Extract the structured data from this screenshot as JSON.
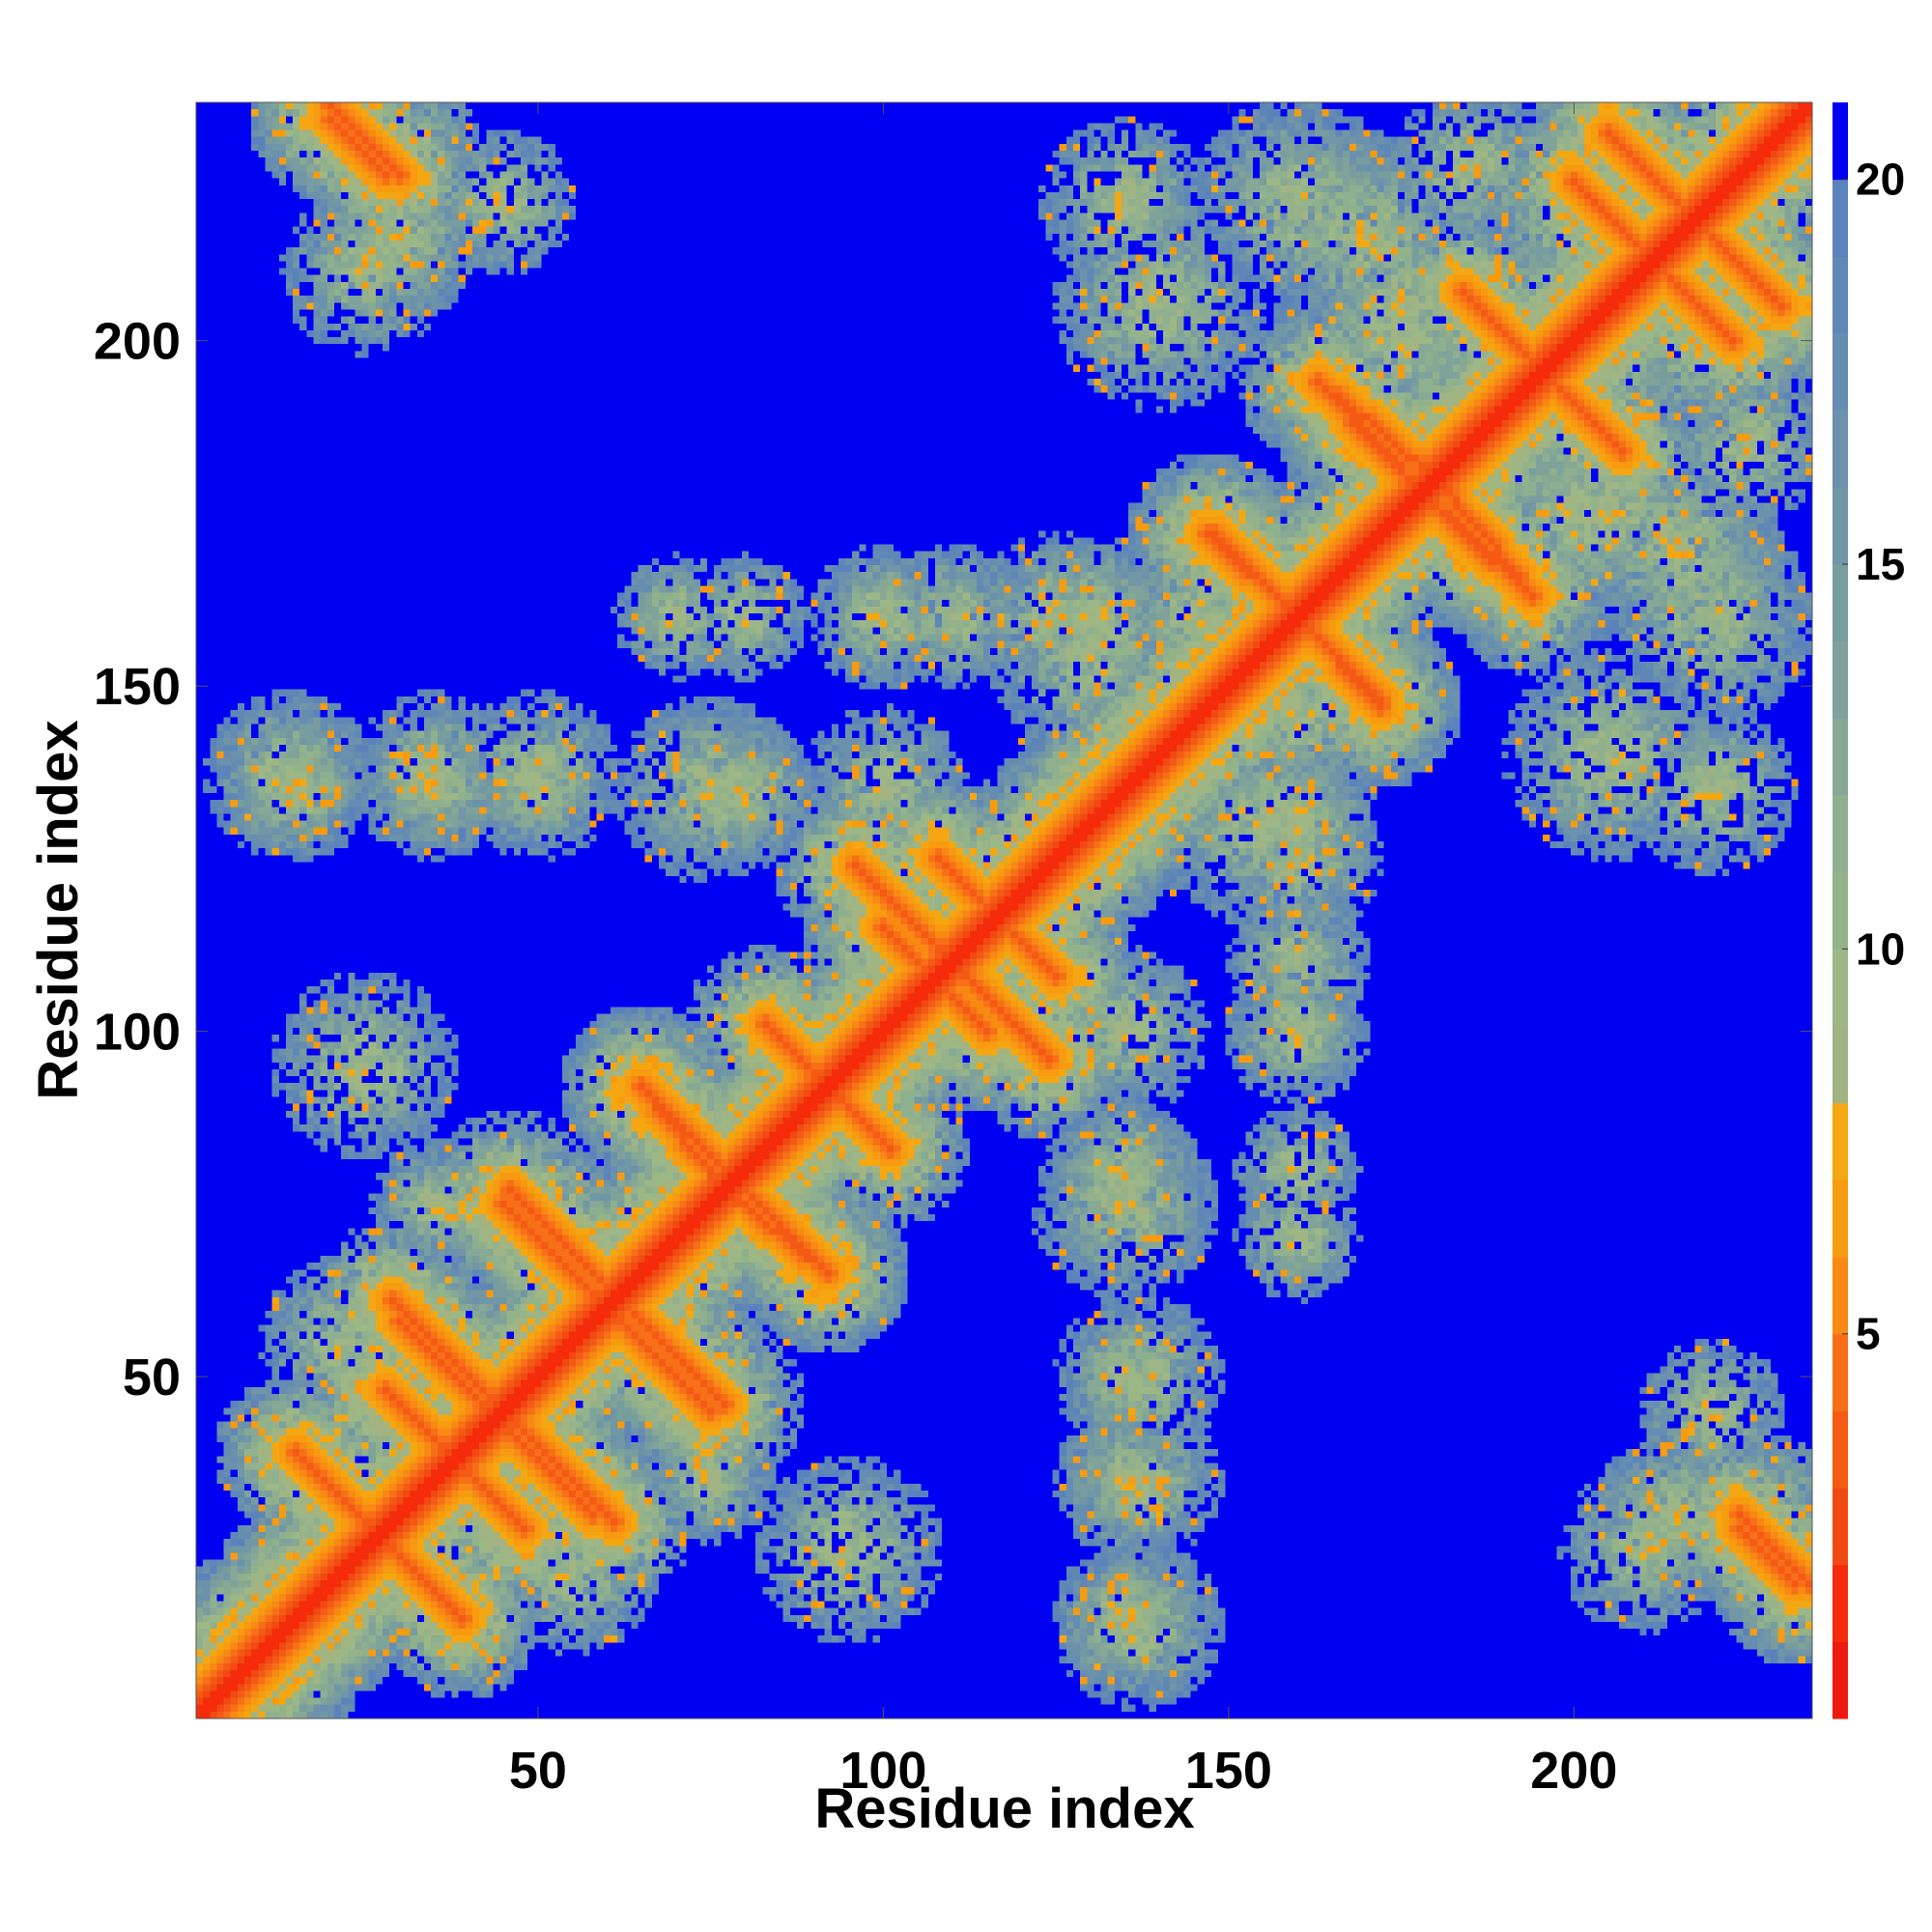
{
  "chart_data": {
    "type": "heatmap",
    "title": "",
    "xlabel": "Residue index",
    "ylabel": "Residue index",
    "n_residues": 234,
    "xlim": [
      1,
      234
    ],
    "ylim": [
      1,
      234
    ],
    "xticks": [
      50,
      100,
      150,
      200
    ],
    "yticks": [
      50,
      100,
      150,
      200
    ],
    "colorbar": {
      "range": [
        0,
        21
      ],
      "ticks": [
        5,
        10,
        15,
        20
      ],
      "levels": [
        {
          "from": 0,
          "to": 1,
          "color": "#ee1a10"
        },
        {
          "from": 1,
          "to": 2,
          "color": "#f52b0c"
        },
        {
          "from": 2,
          "to": 3,
          "color": "#f04a12"
        },
        {
          "from": 3,
          "to": 4,
          "color": "#f55a15"
        },
        {
          "from": 4,
          "to": 5,
          "color": "#f77018"
        },
        {
          "from": 5,
          "to": 6,
          "color": "#f88a14"
        },
        {
          "from": 6,
          "to": 7,
          "color": "#f79b10"
        },
        {
          "from": 7,
          "to": 8,
          "color": "#f5a712"
        },
        {
          "from": 8,
          "to": 9,
          "color": "#a2b482"
        },
        {
          "from": 9,
          "to": 10,
          "color": "#9db787"
        },
        {
          "from": 10,
          "to": 11,
          "color": "#95b38a"
        },
        {
          "from": 11,
          "to": 12,
          "color": "#8fb08f"
        },
        {
          "from": 12,
          "to": 13,
          "color": "#86a894"
        },
        {
          "from": 13,
          "to": 14,
          "color": "#7fa39a"
        },
        {
          "from": 14,
          "to": 15,
          "color": "#789d9f"
        },
        {
          "from": 15,
          "to": 16,
          "color": "#7196a5"
        },
        {
          "from": 16,
          "to": 17,
          "color": "#6b91ac"
        },
        {
          "from": 17,
          "to": 18,
          "color": "#658cb1"
        },
        {
          "from": 18,
          "to": 19,
          "color": "#5f87b6"
        },
        {
          "from": 19,
          "to": 20,
          "color": "#5a82bb"
        },
        {
          "from": 20,
          "to": 21,
          "color": "#0000f2"
        }
      ]
    },
    "background_color": "#0000f2",
    "contact_features": {
      "diagonal_band": {
        "from": 1,
        "to": 234
      },
      "perpendicular_segments": [
        [
          15,
          39,
          38,
          16
        ],
        [
          29,
          61,
          48,
          42
        ],
        [
          44,
          44,
          58,
          30
        ],
        [
          28,
          48,
          48,
          28
        ],
        [
          46,
          77,
          66,
          57
        ],
        [
          60,
          60,
          74,
          46
        ],
        [
          45,
          75,
          70,
          50
        ],
        [
          65,
          92,
          82,
          75
        ],
        [
          83,
          101,
          98,
          86
        ],
        [
          77,
          77,
          92,
          65
        ],
        [
          100,
          115,
          115,
          100
        ],
        [
          108,
          125,
          125,
          108
        ],
        [
          110,
          110,
          124,
          96
        ],
        [
          148,
          172,
          170,
          150
        ],
        [
          160,
          160,
          172,
          147
        ],
        [
          163,
          194,
          188,
          168
        ],
        [
          184,
          207,
          200,
          191
        ],
        [
          200,
          223,
          218,
          205
        ],
        [
          180,
          180,
          192,
          166
        ],
        [
          205,
          230,
          230,
          205
        ],
        [
          20,
          232,
          28,
          224
        ],
        [
          224,
          30,
          234,
          20
        ]
      ],
      "clusters": [
        [
          25,
          95,
          4.5
        ],
        [
          22,
          55,
          4
        ],
        [
          40,
          55,
          3
        ],
        [
          55,
          40,
          3
        ],
        [
          75,
          35,
          3
        ],
        [
          40,
          75,
          3
        ],
        [
          48,
          45,
          5
        ],
        [
          67,
          62,
          5
        ],
        [
          85,
          80,
          5
        ],
        [
          80,
          85,
          4
        ],
        [
          90,
          93,
          4
        ],
        [
          110,
          110,
          5
        ],
        [
          14,
          137,
          4
        ],
        [
          35,
          137,
          4
        ],
        [
          50,
          137,
          4
        ],
        [
          75,
          135,
          4.5
        ],
        [
          100,
          135,
          4
        ],
        [
          130,
          135,
          4
        ],
        [
          100,
          160,
          3.5
        ],
        [
          110,
          160,
          3.5
        ],
        [
          130,
          160,
          4
        ],
        [
          145,
          160,
          4
        ],
        [
          135,
          80,
          3.5
        ],
        [
          135,
          50,
          3
        ],
        [
          135,
          35,
          3
        ],
        [
          135,
          15,
          3.5
        ],
        [
          160,
          100,
          3
        ],
        [
          160,
          80,
          3
        ],
        [
          160,
          70,
          3
        ],
        [
          155,
          130,
          5
        ],
        [
          160,
          125,
          4
        ],
        [
          145,
          145,
          5
        ],
        [
          195,
          200,
          6
        ],
        [
          175,
          205,
          5
        ],
        [
          215,
          215,
          5
        ],
        [
          220,
          160,
          5
        ],
        [
          205,
          140,
          5
        ],
        [
          220,
          135,
          4
        ],
        [
          200,
          175,
          5
        ],
        [
          185,
          225,
          4
        ],
        [
          220,
          45,
          3.5
        ],
        [
          228,
          30,
          4
        ],
        [
          210,
          25,
          4
        ],
        [
          30,
          215,
          4
        ],
        [
          25,
          225,
          3.5
        ],
        [
          170,
          215,
          5
        ],
        [
          218,
          200,
          5
        ]
      ]
    }
  }
}
